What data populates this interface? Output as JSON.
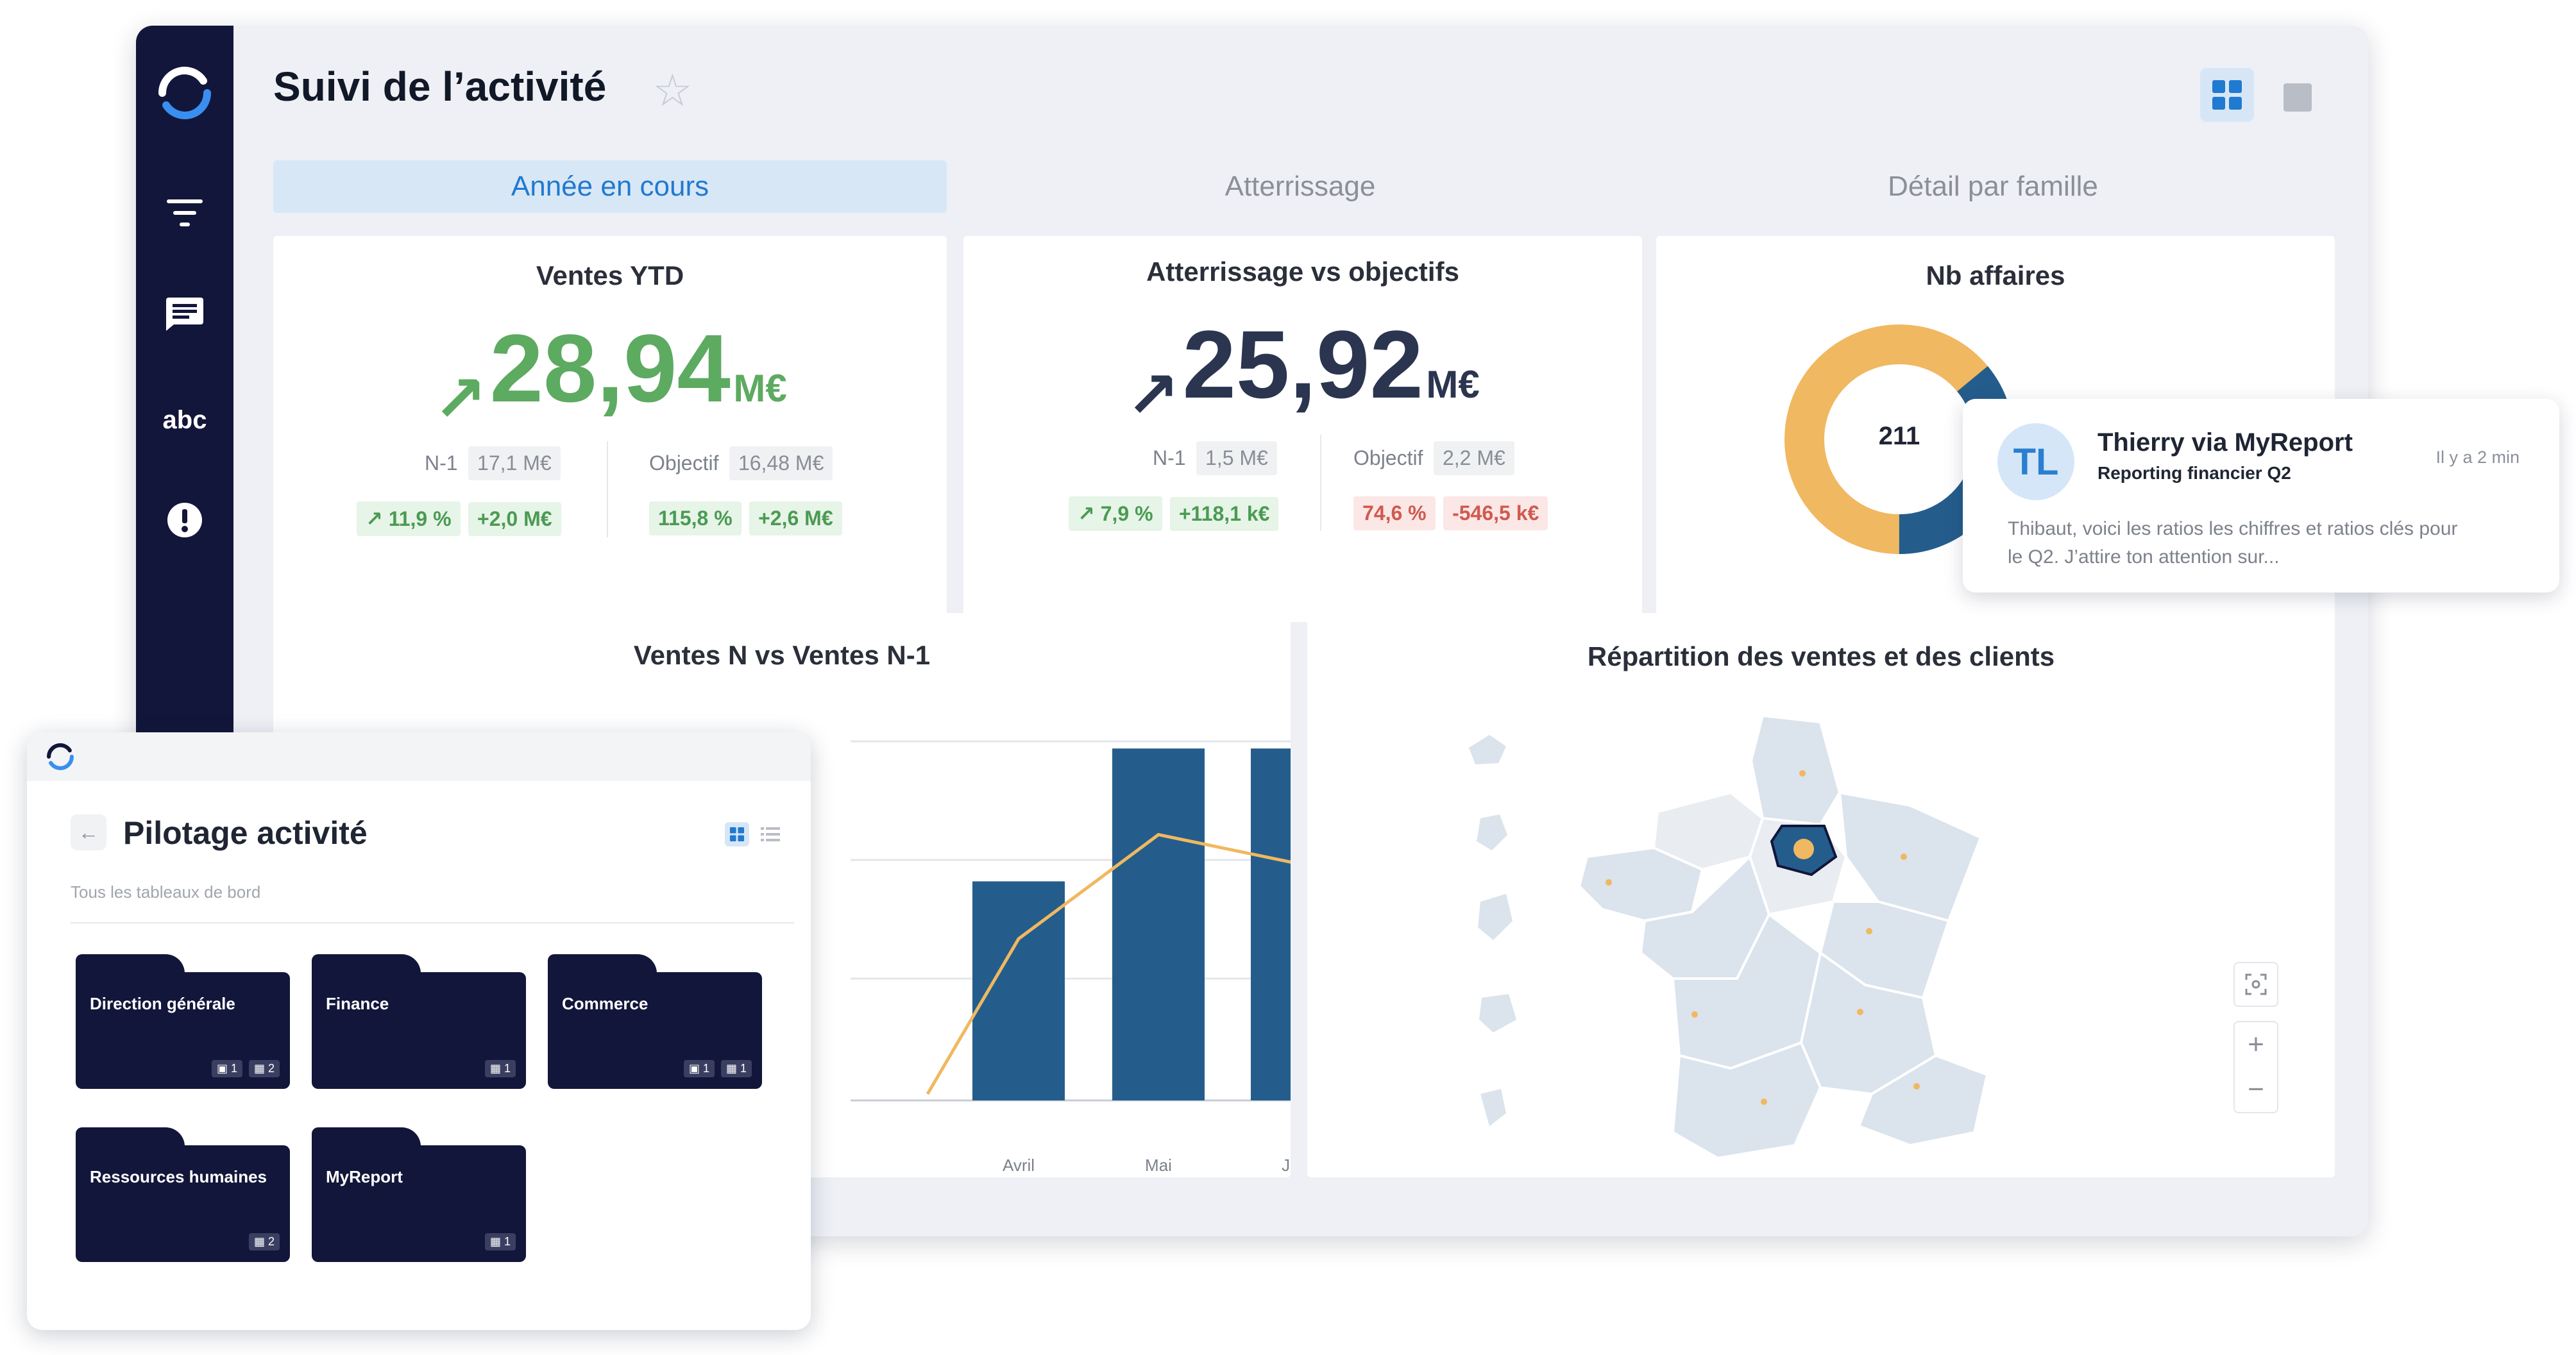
{
  "app": {
    "title": "Suivi de l’activité",
    "colors": {
      "sidebar": "#12163a",
      "accent_blue": "#1f7ad0",
      "positive": "#5daa61",
      "negative": "#d05a4f",
      "bar": "#245d8c",
      "line": "#f0b860"
    }
  },
  "sidebar": {
    "items": [
      {
        "icon": "logo-icon"
      },
      {
        "icon": "filter-icon"
      },
      {
        "icon": "comment-icon"
      },
      {
        "label": "abc"
      },
      {
        "icon": "alert-icon"
      }
    ]
  },
  "tabs": [
    {
      "label": "Année en cours",
      "active": true
    },
    {
      "label": "Atterrissage"
    },
    {
      "label": "Détail par famille"
    }
  ],
  "kpi": [
    {
      "title": "Ventes YTD",
      "value": "28,94",
      "unit": "M€",
      "n1_label": "N-1",
      "n1_value": "17,1 M€",
      "obj_label": "Objectif",
      "obj_value": "16,48 M€",
      "chips": [
        "11,9 %",
        "+2,0 M€",
        "115,8 %",
        "+2,6 M€"
      ]
    },
    {
      "title": "Atterrissage vs objectifs",
      "value": "25,92",
      "unit": "M€",
      "n1_label": "N-1",
      "n1_value": "1,5 M€",
      "obj_label": "Objectif",
      "obj_value": "2,2 M€",
      "chips": [
        "7,9 %",
        "+118,1 k€",
        "74,6 %",
        "-546,5 k€"
      ]
    },
    {
      "title": "Nb affaires",
      "center": "211"
    }
  ],
  "donut": {
    "segments": [
      {
        "color": "#f0b860",
        "share": 0.64
      },
      {
        "color": "#245d8c",
        "share": 0.36
      }
    ]
  },
  "notification": {
    "initials": "TL",
    "sender": "Thierry via MyReport",
    "subject": "Reporting financier Q2",
    "time": "Il y a 2 min",
    "body_line1": "Thibaut, voici les ratios les chiffres et ratios clés pour",
    "body_line2": "le Q2. J’attire ton attention sur..."
  },
  "chart_data": {
    "type": "bar",
    "title": "Ventes N vs Ventes N-1",
    "categories": [
      "Avril",
      "Mai",
      "Juin"
    ],
    "series": [
      {
        "values": [
          0.61,
          0.98,
          0.98
        ]
      },
      {
        "values": [
          0.45,
          0.74,
          0.66
        ]
      }
    ]
  },
  "map": {
    "title": "Répartition des ventes et des clients"
  },
  "overlay": {
    "title": "Pilotage activité",
    "subtitle": "Tous les tableaux de bord",
    "folders": [
      {
        "name": "Direction générale",
        "badges": [
          "1",
          "2"
        ]
      },
      {
        "name": "Finance",
        "badges": [
          "1"
        ]
      },
      {
        "name": "Commerce",
        "badges": [
          "1",
          "1"
        ]
      },
      {
        "name": "Ressources humaines",
        "badges": [
          "2"
        ]
      },
      {
        "name": "MyReport",
        "badges": [
          "1"
        ]
      }
    ]
  }
}
